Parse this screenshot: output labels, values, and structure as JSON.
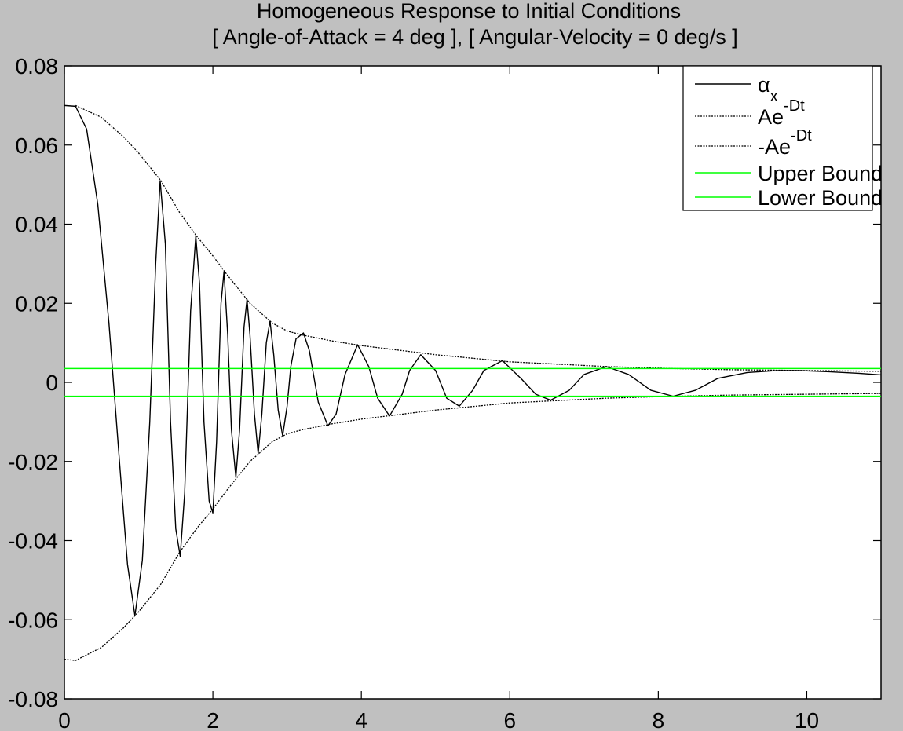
{
  "chart_data": {
    "type": "line",
    "title": "Homogeneous Response to Initial Conditions",
    "subtitle": "[ Angle-of-Attack = 4 deg ], [ Angular-Velocity = 0 deg/s ]",
    "xlabel": "",
    "ylabel": "",
    "xlim": [
      0,
      11
    ],
    "ylim": [
      -0.08,
      0.08
    ],
    "grid": false,
    "legend_position": "top-right",
    "x_ticks": [
      "0",
      "2",
      "4",
      "6",
      "8",
      "10"
    ],
    "y_ticks": [
      "0.08",
      "0.06",
      "0.04",
      "0.02",
      "0",
      "-0.02",
      "-0.04",
      "-0.06",
      "-0.08"
    ],
    "legend": [
      {
        "label_main": "α",
        "label_sub": "x",
        "label_sup": "",
        "style": "solid",
        "color": "#000000"
      },
      {
        "label_main": "Ae",
        "label_sub": "",
        "label_sup": "-Dt",
        "style": "dotted",
        "color": "#000000"
      },
      {
        "label_main": "-Ae",
        "label_sub": "",
        "label_sup": "-Dt",
        "style": "dotted",
        "color": "#000000"
      },
      {
        "label_main": "Upper Bound",
        "label_sub": "",
        "label_sup": "",
        "style": "solid",
        "color": "#00ff00"
      },
      {
        "label_main": "Lower Bound",
        "label_sub": "",
        "label_sup": "",
        "style": "solid",
        "color": "#00ff00"
      }
    ],
    "series": [
      {
        "legend_index": 0,
        "style": "solid",
        "color": "#000000",
        "points": [
          [
            0,
            0.07
          ],
          [
            0.15,
            0.0698
          ],
          [
            0.3,
            0.064
          ],
          [
            0.45,
            0.045
          ],
          [
            0.6,
            0.015
          ],
          [
            0.75,
            -0.022
          ],
          [
            0.85,
            -0.046
          ],
          [
            0.95,
            -0.059
          ],
          [
            1.05,
            -0.045
          ],
          [
            1.15,
            -0.01
          ],
          [
            1.23,
            0.03
          ],
          [
            1.29,
            0.051
          ],
          [
            1.36,
            0.035
          ],
          [
            1.43,
            -0.01
          ],
          [
            1.5,
            -0.037
          ],
          [
            1.56,
            -0.044
          ],
          [
            1.62,
            -0.028
          ],
          [
            1.7,
            0.018
          ],
          [
            1.77,
            0.037
          ],
          [
            1.82,
            0.025
          ],
          [
            1.88,
            -0.01
          ],
          [
            1.95,
            -0.03
          ],
          [
            2.0,
            -0.033
          ],
          [
            2.05,
            -0.015
          ],
          [
            2.11,
            0.02
          ],
          [
            2.15,
            0.028
          ],
          [
            2.2,
            0.012
          ],
          [
            2.25,
            -0.012
          ],
          [
            2.31,
            -0.024
          ],
          [
            2.36,
            -0.012
          ],
          [
            2.42,
            0.014
          ],
          [
            2.46,
            0.021
          ],
          [
            2.5,
            0.012
          ],
          [
            2.56,
            -0.008
          ],
          [
            2.61,
            -0.018
          ],
          [
            2.66,
            -0.008
          ],
          [
            2.72,
            0.01
          ],
          [
            2.77,
            0.0155
          ],
          [
            2.82,
            0.007
          ],
          [
            2.88,
            -0.007
          ],
          [
            2.94,
            -0.0135
          ],
          [
            3.0,
            -0.006
          ],
          [
            3.05,
            0.004
          ],
          [
            3.12,
            0.011
          ],
          [
            3.22,
            0.0125
          ],
          [
            3.3,
            0.008
          ],
          [
            3.42,
            -0.005
          ],
          [
            3.55,
            -0.011
          ],
          [
            3.66,
            -0.008
          ],
          [
            3.78,
            0.002
          ],
          [
            3.95,
            0.0095
          ],
          [
            4.1,
            0.004
          ],
          [
            4.22,
            -0.004
          ],
          [
            4.38,
            -0.0085
          ],
          [
            4.55,
            -0.003
          ],
          [
            4.65,
            0.003
          ],
          [
            4.8,
            0.007
          ],
          [
            5.0,
            0.003
          ],
          [
            5.15,
            -0.004
          ],
          [
            5.32,
            -0.006
          ],
          [
            5.5,
            -0.002
          ],
          [
            5.65,
            0.003
          ],
          [
            5.9,
            0.0055
          ],
          [
            6.15,
            0.001
          ],
          [
            6.35,
            -0.003
          ],
          [
            6.55,
            -0.0045
          ],
          [
            6.8,
            -0.002
          ],
          [
            7.0,
            0.002
          ],
          [
            7.3,
            0.004
          ],
          [
            7.6,
            0.002
          ],
          [
            7.9,
            -0.002
          ],
          [
            8.2,
            -0.0035
          ],
          [
            8.5,
            -0.002
          ],
          [
            8.8,
            0.001
          ],
          [
            9.2,
            0.0025
          ],
          [
            9.6,
            0.003
          ],
          [
            9.9,
            0.003
          ],
          [
            10.3,
            0.0027
          ],
          [
            10.7,
            0.0023
          ],
          [
            11.0,
            0.0019
          ]
        ]
      },
      {
        "legend_index": 1,
        "style": "dotted",
        "color": "#000000",
        "points": [
          [
            0.15,
            0.07
          ],
          [
            0.5,
            0.067
          ],
          [
            0.8,
            0.062
          ],
          [
            1.0,
            0.058
          ],
          [
            1.3,
            0.051
          ],
          [
            1.55,
            0.043
          ],
          [
            1.78,
            0.037
          ],
          [
            2.0,
            0.032
          ],
          [
            2.2,
            0.027
          ],
          [
            2.5,
            0.02
          ],
          [
            2.8,
            0.015
          ],
          [
            3.0,
            0.013
          ],
          [
            3.2,
            0.012
          ],
          [
            3.6,
            0.0105
          ],
          [
            4.0,
            0.0093
          ],
          [
            5.0,
            0.007
          ],
          [
            6.0,
            0.0052
          ],
          [
            7.3,
            0.004
          ],
          [
            8.2,
            0.0035
          ],
          [
            9.0,
            0.0032
          ],
          [
            10.0,
            0.003
          ],
          [
            11.0,
            0.0028
          ]
        ]
      },
      {
        "legend_index": 2,
        "style": "dotted",
        "color": "#000000",
        "points": [
          [
            0.0,
            -0.07
          ],
          [
            0.15,
            -0.0703
          ],
          [
            0.5,
            -0.067
          ],
          [
            0.8,
            -0.062
          ],
          [
            1.0,
            -0.058
          ],
          [
            1.3,
            -0.051
          ],
          [
            1.55,
            -0.043
          ],
          [
            1.78,
            -0.037
          ],
          [
            2.0,
            -0.032
          ],
          [
            2.2,
            -0.027
          ],
          [
            2.5,
            -0.02
          ],
          [
            2.8,
            -0.015
          ],
          [
            3.0,
            -0.013
          ],
          [
            3.2,
            -0.012
          ],
          [
            3.6,
            -0.0105
          ],
          [
            4.0,
            -0.0093
          ],
          [
            5.0,
            -0.007
          ],
          [
            6.0,
            -0.0052
          ],
          [
            7.3,
            -0.004
          ],
          [
            8.2,
            -0.0035
          ],
          [
            9.0,
            -0.0032
          ],
          [
            10.0,
            -0.003
          ],
          [
            11.0,
            -0.0028
          ]
        ]
      },
      {
        "legend_index": 3,
        "style": "solid",
        "color": "#00ff00",
        "points": [
          [
            0,
            0.0035
          ],
          [
            11,
            0.0035
          ]
        ]
      },
      {
        "legend_index": 4,
        "style": "solid",
        "color": "#00ff00",
        "points": [
          [
            0,
            -0.0035
          ],
          [
            11,
            -0.0035
          ]
        ]
      }
    ]
  }
}
